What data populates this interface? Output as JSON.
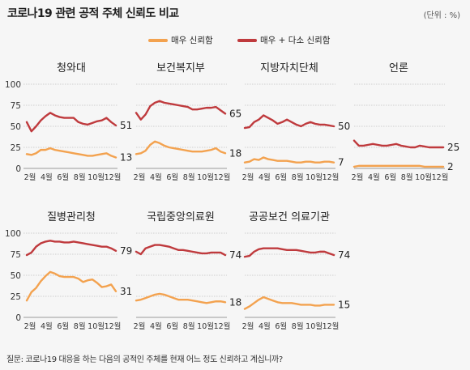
{
  "title": "코로나19 관련 공적 주체 신뢰도 비교",
  "unit": "(단위 : %)",
  "footnote": "질문: 코로나19 대응을 하는 다음의 공적인 주체를 현재 어느 정도 신뢰하고 계십니까?",
  "colors": {
    "very": "#f3a24f",
    "total": "#bf3a3d"
  },
  "chart_data": {
    "type": "line",
    "legend": {
      "placement": "top-center",
      "entries": [
        "매우 신뢰함",
        "매우 + 다소 신뢰함"
      ]
    },
    "ylim": [
      0,
      100
    ],
    "yticks": [
      "0",
      "25",
      "50",
      "75",
      "100"
    ],
    "xticks": [
      "2월",
      "4월",
      "6월",
      "8월",
      "10월",
      "12월"
    ],
    "grid": true,
    "panels": [
      {
        "title": "청와대",
        "series": [
          {
            "name": "매우 + 다소 신뢰함",
            "end_label": "51",
            "values": [
              55,
              44,
              50,
              57,
              62,
              66,
              63,
              61,
              60,
              60,
              60,
              55,
              53,
              52,
              54,
              56,
              57,
              60,
              55,
              51
            ]
          },
          {
            "name": "매우 신뢰함",
            "end_label": "13",
            "values": [
              17,
              16,
              18,
              22,
              22,
              24,
              22,
              21,
              20,
              19,
              18,
              17,
              16,
              15,
              15,
              16,
              17,
              18,
              15,
              13
            ]
          }
        ]
      },
      {
        "title": "보건복지부",
        "series": [
          {
            "name": "매우 + 다소 신뢰함",
            "end_label": "65",
            "values": [
              66,
              58,
              64,
              74,
              78,
              80,
              78,
              77,
              76,
              75,
              74,
              73,
              70,
              70,
              71,
              72,
              72,
              73,
              69,
              65
            ]
          },
          {
            "name": "매우 신뢰함",
            "end_label": "18",
            "values": [
              17,
              18,
              21,
              28,
              32,
              30,
              27,
              25,
              24,
              23,
              22,
              21,
              20,
              20,
              20,
              21,
              22,
              24,
              20,
              18
            ]
          }
        ]
      },
      {
        "title": "지방자치단체",
        "series": [
          {
            "name": "매우 + 다소 신뢰함",
            "end_label": "50",
            "values": [
              48,
              49,
              55,
              58,
              63,
              60,
              57,
              53,
              55,
              58,
              55,
              52,
              50,
              53,
              55,
              53,
              52,
              52,
              51,
              50
            ]
          },
          {
            "name": "매우 신뢰함",
            "end_label": "7",
            "values": [
              7,
              8,
              11,
              10,
              13,
              11,
              10,
              9,
              9,
              9,
              8,
              7,
              7,
              8,
              8,
              7,
              7,
              8,
              8,
              7
            ]
          }
        ]
      },
      {
        "title": "언론",
        "series": [
          {
            "name": "매우 + 다소 신뢰함",
            "end_label": "25",
            "values": [
              33,
              27,
              27,
              28,
              29,
              28,
              27,
              27,
              28,
              29,
              27,
              26,
              25,
              25,
              27,
              26,
              25,
              25,
              25,
              25
            ]
          },
          {
            "name": "매우 신뢰함",
            "end_label": "2",
            "values": [
              2,
              3,
              3,
              3,
              3,
              3,
              3,
              3,
              3,
              3,
              3,
              3,
              3,
              3,
              3,
              2,
              2,
              2,
              2,
              2
            ]
          }
        ]
      },
      {
        "title": "질병관리청",
        "series": [
          {
            "name": "매우 + 다소 신뢰함",
            "end_label": "79",
            "values": [
              74,
              77,
              84,
              88,
              90,
              91,
              90,
              90,
              89,
              89,
              90,
              89,
              88,
              87,
              86,
              85,
              84,
              84,
              82,
              79
            ]
          },
          {
            "name": "매우 신뢰함",
            "end_label": "31",
            "values": [
              20,
              30,
              35,
              43,
              49,
              54,
              52,
              49,
              48,
              48,
              48,
              46,
              42,
              44,
              45,
              41,
              36,
              37,
              39,
              31
            ]
          }
        ]
      },
      {
        "title": "국립중앙의료원",
        "series": [
          {
            "name": "매우 + 다소 신뢰함",
            "end_label": "74",
            "values": [
              78,
              75,
              82,
              84,
              86,
              86,
              85,
              84,
              82,
              80,
              80,
              79,
              78,
              77,
              76,
              76,
              77,
              77,
              77,
              74
            ]
          },
          {
            "name": "매우 신뢰함",
            "end_label": "18",
            "values": [
              20,
              21,
              23,
              25,
              27,
              28,
              27,
              25,
              23,
              21,
              21,
              21,
              20,
              19,
              18,
              17,
              18,
              19,
              19,
              18
            ]
          }
        ]
      },
      {
        "title": "공공보건 의료기관",
        "series": [
          {
            "name": "매우 + 다소 신뢰함",
            "end_label": "74",
            "values": [
              72,
              73,
              78,
              81,
              82,
              82,
              82,
              82,
              81,
              80,
              80,
              80,
              79,
              78,
              77,
              77,
              78,
              78,
              76,
              74
            ]
          },
          {
            "name": "매우 신뢰함",
            "end_label": "15",
            "values": [
              10,
              13,
              17,
              21,
              24,
              22,
              20,
              18,
              17,
              17,
              17,
              16,
              15,
              15,
              15,
              14,
              14,
              15,
              15,
              15
            ]
          }
        ]
      }
    ]
  }
}
